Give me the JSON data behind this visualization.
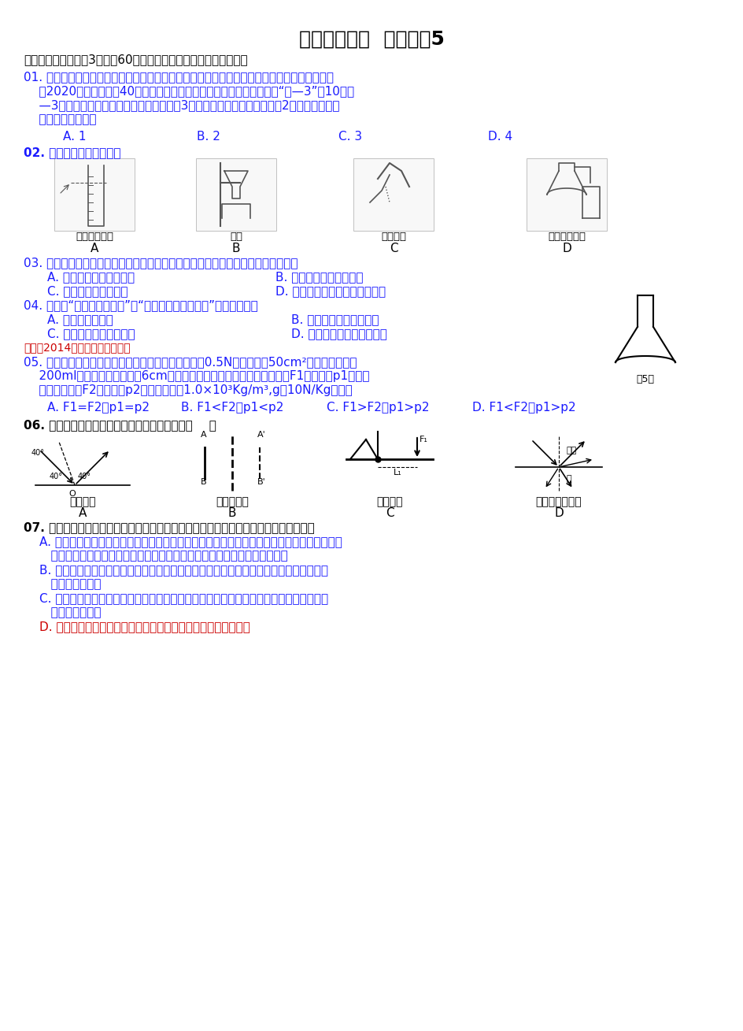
{
  "title": "新版中考模拟  科学试卷5",
  "bg_color": "#ffffff",
  "text_color": "#1a1aff",
  "black_color": "#000000",
  "red_color": "#cc0000",
  "section1": "一、选择题一（每题3分，共60分，每小题只有一个选项符合题意）",
  "q01_lines": [
    "01. 中国正在加大能源结构调整力度，积极发展核电、风电、水电等清洁优质能源已刻不容缓。",
    "    到2020年中国将建成40座相当于大亚湾那样的百万千瓦级的核电站。“氦—3”，10吨氦",
    "    —3就能满足我国一年所有的能源需求。（3是相对原子质量）氦原子核有2个质子，则该原",
    "    子中电子的个数为"
  ],
  "q01_opts": [
    "A. 1",
    "B. 2",
    "C. 3",
    "D. 4"
  ],
  "q02_text": "02. 下列实验操作错误的是",
  "q02_labels": [
    "读取液体体积",
    "过滤",
    "倾倒液体",
    "制取二氧化碳"
  ],
  "q02_abc": [
    "A",
    "B",
    "C",
    "D"
  ],
  "q03_text": "03. 小玉用显微镜观察某生物组织切片，她判断该生物是动物。她的判断依据应该是",
  "q03_opts": [
    "A. 该组织细胞没有叶绿体",
    "B. 该组织细胞没有细胞壁",
    "C. 该组织细胞有线粒体",
    "D. 该组织细胞没有成型的细胞核"
  ],
  "q04_text": "04. 俗话说“大树底下好乘凉”、“千里之堤，溃于蚁穴”。这都体现了",
  "q04_opts": [
    "A. 生物能影响环境",
    "B. 生物能适应一定的环境",
    "C. 环境能影响生物的生存",
    "D. 生物与环境可以相互影响"
  ],
  "q04_source": "来源：2014年各地生物中考汇编",
  "q05_lines": [
    "05. 化学实验桌上有一锥形瓶，经测量知道空锥形瓶重0.5N，底面积为50cm²，现向其中注入",
    "    200ml水，测得水面距瓶底6cm，如图所示。设水对瓶底产生的压力为F1，压强为p1，瓶对",
    "    桌面的压力为F2，压强为p2（水的密度为1.0×10³Kg/m³,g取10N/Kg），则"
  ],
  "q05_opts": [
    "A. F1=F2，p1=p2",
    "B. F1<F2，p1<p2",
    "C. F1>F2，p1>p2",
    "D. F1<F2，p1>p2"
  ],
  "q06_text": "06. 下图是我们学过的物理知识，其中正确的是（    ）",
  "q06_labels": [
    "光的反射",
    "平面镜成像",
    "力和力臂",
    "光从空气射入水"
  ],
  "q06_abc": [
    "A",
    "B",
    "C",
    "D"
  ],
  "q07_text": "07. 家庭厨房中的用品都是由各种材料制成的，你认为下列哪种做法（或说法）是合理的",
  "q07_lines": [
    "A. 铝锅比较耐用，是因为铝锅表面有一层致密的氧化物薄膜。铝锅可以用来盛放醋、酸梅汤等",
    "   联合国曾向全世界推荐中国的大铁锅，是因为可以增加人体铁素质的摄入。",
    "B. 用不锈钢制成的厨房日用品不易生锈，这是因为在普通钢中添加了铬、镍等合金元素改",
    "   变了钢铁都结构",
    "C. 用不锈钢制成的厨房日用品不易生锈，这是因为在普通钢中添加入铬、镍等合金元素改",
    "   变了钢铁都结构",
    "D. 炒锅的手柄由塑料制成，塑料是一种天然的有机高分子材料。"
  ],
  "flask_label": "第5题",
  "angle_label": "40°",
  "air_label": "空气",
  "water_label": "水",
  "L1_label": "L₁",
  "F1_label": "F₁",
  "A_label": "A",
  "Aprime_label": "A'",
  "B_label": "B",
  "Bprime_label": "B'",
  "O_label": "O"
}
